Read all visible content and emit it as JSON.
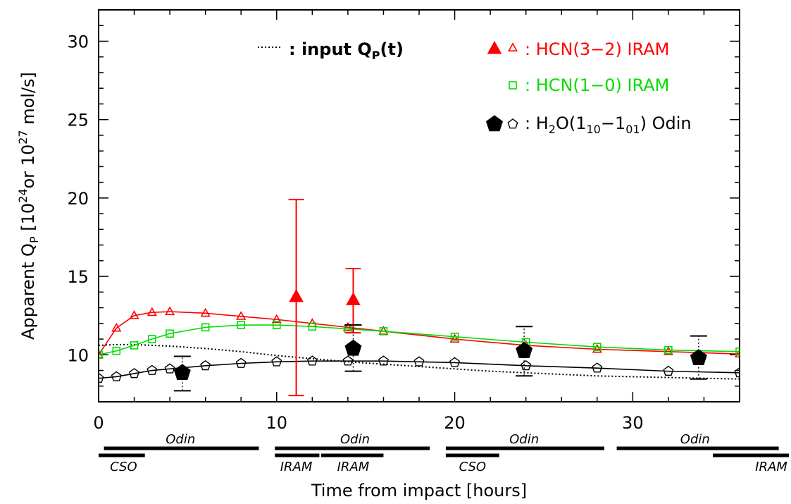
{
  "chart_data": {
    "type": "scatter",
    "xlabel": "Time from impact [hours]",
    "ylabel": {
      "prefix": "Apparent Q",
      "sub": "P",
      "mid1": " [10",
      "sup1": "24",
      "mid2": "or 10",
      "sup2": "27",
      "suffix": " mol/s]"
    },
    "xlim": [
      0,
      36
    ],
    "ylim": [
      7,
      32
    ],
    "x_ticks": [
      0,
      10,
      20,
      30
    ],
    "y_ticks": [
      10,
      15,
      20,
      25,
      30
    ],
    "grid": false,
    "legend": {
      "placement": "top",
      "input_label": {
        "prefix": ": input Q",
        "sub": "P",
        "suffix": "(t)"
      },
      "hcn32_label": ": HCN(3−2) IRAM",
      "hcn10_label": ": HCN(1−0) IRAM",
      "h2o_label": {
        "p1": ": H",
        "s1": "2",
        "p2": "O(1",
        "s2": "10",
        "p3": "−1",
        "s3": "01",
        "p4": ") Odin"
      }
    },
    "colors": {
      "hcn32": "#ff0000",
      "hcn10": "#00dd00",
      "h2o": "#000000",
      "input": "#000000"
    },
    "series": [
      {
        "name": "input QP(t)",
        "kind": "dotted-line",
        "x": [
          0,
          1,
          2,
          4,
          6,
          8,
          10,
          12,
          14,
          16,
          18,
          20,
          22,
          24,
          26,
          28,
          30,
          32,
          34,
          36
        ],
        "y": [
          10.6,
          10.65,
          10.65,
          10.55,
          10.4,
          10.2,
          9.95,
          9.75,
          9.55,
          9.4,
          9.25,
          9.1,
          8.95,
          8.85,
          8.75,
          8.65,
          8.6,
          8.55,
          8.5,
          8.45
        ]
      },
      {
        "name": "HCN(3-2) IRAM model",
        "kind": "line-open-triangle",
        "x": [
          0,
          1,
          2,
          3,
          4,
          6,
          8,
          10,
          12,
          14,
          16,
          20,
          24,
          28,
          32,
          36
        ],
        "y": [
          10.0,
          11.7,
          12.5,
          12.7,
          12.75,
          12.65,
          12.45,
          12.25,
          12.0,
          11.75,
          11.5,
          11.0,
          10.6,
          10.35,
          10.2,
          10.05
        ]
      },
      {
        "name": "HCN(3-2) IRAM observed",
        "kind": "filled-triangle",
        "x": [
          11.1,
          14.3
        ],
        "y": [
          13.7,
          13.5
        ],
        "err_low": [
          7.4,
          11.4
        ],
        "err_high": [
          19.9,
          15.5
        ]
      },
      {
        "name": "HCN(1-0) IRAM model",
        "kind": "line-open-square",
        "x": [
          0,
          1,
          2,
          3,
          4,
          6,
          8,
          10,
          12,
          14,
          16,
          20,
          24,
          28,
          32,
          36
        ],
        "y": [
          10.0,
          10.25,
          10.6,
          11.0,
          11.35,
          11.75,
          11.9,
          11.9,
          11.8,
          11.65,
          11.5,
          11.15,
          10.8,
          10.5,
          10.3,
          10.2
        ]
      },
      {
        "name": "H2O(110-101) Odin model",
        "kind": "line-open-pentagon",
        "x": [
          0,
          1,
          2,
          3,
          4,
          6,
          8,
          10,
          12,
          14,
          16,
          18,
          20,
          24,
          28,
          32,
          36
        ],
        "y": [
          8.5,
          8.6,
          8.8,
          9.0,
          9.1,
          9.3,
          9.45,
          9.55,
          9.6,
          9.6,
          9.6,
          9.55,
          9.5,
          9.3,
          9.15,
          8.95,
          8.85
        ]
      },
      {
        "name": "H2O(110-101) Odin observed",
        "kind": "filled-pentagon",
        "x": [
          4.7,
          14.3,
          23.9,
          33.7
        ],
        "y": [
          8.85,
          10.4,
          10.25,
          9.8
        ],
        "err_low": [
          7.7,
          8.95,
          8.65,
          8.45
        ],
        "err_high": [
          9.9,
          11.9,
          11.8,
          11.2
        ]
      }
    ],
    "observing_windows": [
      {
        "label": "Odin",
        "start": 0.3,
        "end": 9.0,
        "row": 1,
        "label_at": 4.6
      },
      {
        "label": "CSO",
        "start": 0.0,
        "end": 2.6,
        "row": 2,
        "label_at": 1.4
      },
      {
        "label": "Odin",
        "start": 9.9,
        "end": 18.6,
        "row": 1,
        "label_at": 14.4
      },
      {
        "label": "IRAM",
        "start": 9.9,
        "end": 12.4,
        "row": 2,
        "label_at": 11.1
      },
      {
        "label": "IRAM",
        "start": 12.5,
        "end": 16.0,
        "row": 2,
        "label_at": 14.3
      },
      {
        "label": "Odin",
        "start": 19.5,
        "end": 28.4,
        "row": 1,
        "label_at": 23.9
      },
      {
        "label": "CSO",
        "start": 19.5,
        "end": 22.5,
        "row": 2,
        "label_at": 21.0
      },
      {
        "label": "Odin",
        "start": 29.1,
        "end": 38.2,
        "row": 1,
        "label_at": 33.5
      },
      {
        "label": "IRAM",
        "start": 34.5,
        "end": 40.0,
        "row": 2,
        "label_at": 37.8
      }
    ]
  }
}
